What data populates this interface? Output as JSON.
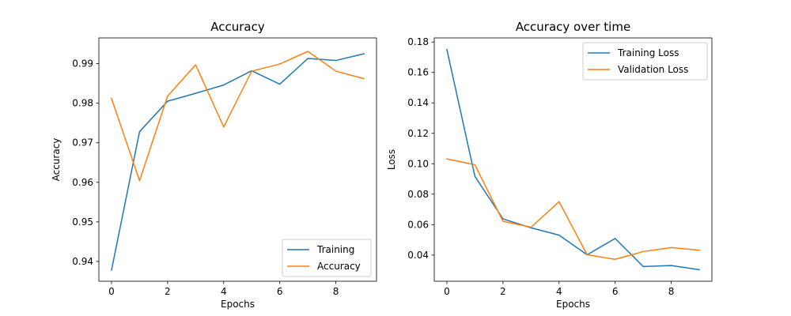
{
  "colors": {
    "series1": "#1f77b4",
    "series2": "#ff7f0e",
    "axes": "#000000",
    "legend_border": "#cccccc",
    "background": "#ffffff"
  },
  "chart_data": [
    {
      "type": "line",
      "title": "Accuracy",
      "xlabel": "Epochs",
      "ylabel": "Accuracy",
      "x": [
        0,
        1,
        2,
        3,
        4,
        5,
        6,
        7,
        8,
        9
      ],
      "xlim": [
        -0.45,
        9.45
      ],
      "ylim": [
        0.935,
        0.9965
      ],
      "xticks": [
        0,
        2,
        4,
        6,
        8
      ],
      "yticks": [
        0.94,
        0.95,
        0.96,
        0.97,
        0.98,
        0.99
      ],
      "xtick_labels": [
        "0",
        "2",
        "4",
        "6",
        "8"
      ],
      "ytick_labels": [
        "0.94",
        "0.95",
        "0.96",
        "0.97",
        "0.98",
        "0.99"
      ],
      "grid": false,
      "legend_position": "lower-right",
      "series": [
        {
          "name": "Training",
          "color": "#1f77b4",
          "values": [
            0.9378,
            0.9728,
            0.9805,
            0.9825,
            0.9846,
            0.9882,
            0.9848,
            0.9913,
            0.9908,
            0.9925
          ]
        },
        {
          "name": "Accuracy",
          "color": "#ff7f0e",
          "values": [
            0.9812,
            0.9604,
            0.9818,
            0.9897,
            0.974,
            0.9881,
            0.9899,
            0.9931,
            0.9881,
            0.9862
          ]
        }
      ]
    },
    {
      "type": "line",
      "title": "Accuracy over time",
      "xlabel": "Epochs",
      "ylabel": "Loss",
      "x": [
        0,
        1,
        2,
        3,
        4,
        5,
        6,
        7,
        8,
        9
      ],
      "xlim": [
        -0.45,
        9.45
      ],
      "ylim": [
        0.0228,
        0.1827
      ],
      "xticks": [
        0,
        2,
        4,
        6,
        8
      ],
      "yticks": [
        0.04,
        0.06,
        0.08,
        0.1,
        0.12,
        0.14,
        0.16,
        0.18
      ],
      "xtick_labels": [
        "0",
        "2",
        "4",
        "6",
        "8"
      ],
      "ytick_labels": [
        "0.04",
        "0.06",
        "0.08",
        "0.10",
        "0.12",
        "0.14",
        "0.16",
        "0.18"
      ],
      "grid": false,
      "legend_position": "upper-right",
      "series": [
        {
          "name": "Training Loss",
          "color": "#1f77b4",
          "values": [
            0.1751,
            0.0917,
            0.0638,
            0.0579,
            0.0531,
            0.0402,
            0.0509,
            0.0325,
            0.0331,
            0.0304
          ]
        },
        {
          "name": "Validation Loss",
          "color": "#ff7f0e",
          "values": [
            0.1032,
            0.0993,
            0.0622,
            0.0583,
            0.0751,
            0.0402,
            0.0372,
            0.0423,
            0.0449,
            0.0432
          ]
        }
      ]
    }
  ]
}
